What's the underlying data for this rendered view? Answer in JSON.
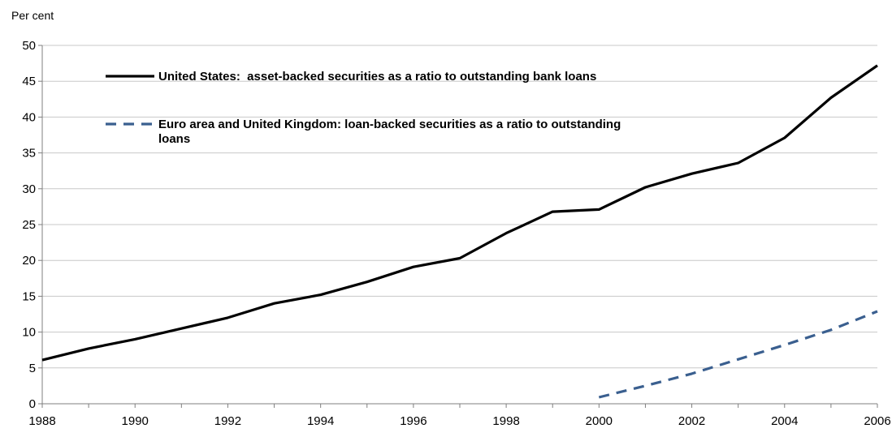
{
  "chart_data": {
    "type": "line",
    "title": "",
    "ylabel": "Per cent",
    "xlabel": "",
    "ylim": [
      0,
      50
    ],
    "yticks": [
      0,
      5,
      10,
      15,
      20,
      25,
      30,
      35,
      40,
      45,
      50
    ],
    "xlim": [
      1988,
      2006
    ],
    "xticks": [
      1988,
      1990,
      1992,
      1994,
      1996,
      1998,
      2000,
      2002,
      2004,
      2006
    ],
    "grid": "horizontal",
    "legend_position": "top-left",
    "series": [
      {
        "name": "United States:  asset-backed securities as a ratio to outstanding bank loans",
        "color": "#000000",
        "style": "solid",
        "x": [
          1988,
          1989,
          1990,
          1991,
          1992,
          1993,
          1994,
          1995,
          1996,
          1997,
          1998,
          1999,
          2000,
          2001,
          2002,
          2003,
          2004,
          2005,
          2006
        ],
        "y": [
          6.1,
          7.7,
          9.0,
          10.5,
          12.0,
          14.0,
          15.2,
          17.0,
          19.1,
          20.3,
          23.8,
          26.8,
          27.1,
          30.2,
          32.1,
          33.6,
          37.1,
          42.7,
          47.2
        ]
      },
      {
        "name": "Euro area and United Kingdom: loan-backed securities as a ratio to outstanding loans",
        "name_lines": [
          "Euro area and United Kingdom: loan-backed securities as a ratio to outstanding",
          "loans"
        ],
        "color": "#3a5f8f",
        "style": "dashed",
        "x": [
          2000,
          2001,
          2002,
          2003,
          2004,
          2005,
          2006
        ],
        "y": [
          0.9,
          2.5,
          4.2,
          6.2,
          8.2,
          10.3,
          12.9
        ]
      }
    ]
  }
}
